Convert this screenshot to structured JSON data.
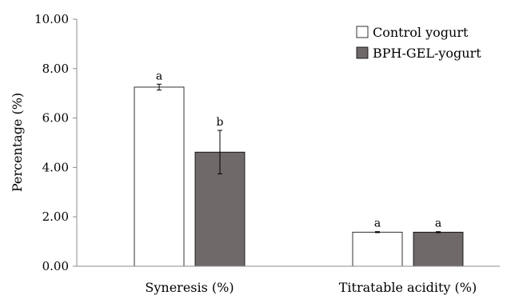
{
  "chart_data": {
    "type": "bar",
    "ylabel": "Percentage (%)",
    "xlabel": "",
    "ylim": [
      0,
      10
    ],
    "yticks": [
      "0.00",
      "2.00",
      "4.00",
      "6.00",
      "8.00",
      "10.00"
    ],
    "grid": false,
    "legend_position": "top-right",
    "categories": [
      "Syneresis (%)",
      "Titratable acidity (%)"
    ],
    "series": [
      {
        "name": "Control yogurt",
        "color": "#ffffff",
        "values": [
          7.25,
          1.38
        ],
        "errors": [
          0.12,
          0.02
        ],
        "labels": [
          "a",
          "a"
        ]
      },
      {
        "name": "BPH-GEL-yogurt",
        "color": "#6f6969",
        "values": [
          4.62,
          1.38
        ],
        "errors": [
          0.88,
          0.02
        ],
        "labels": [
          "b",
          "a"
        ]
      }
    ]
  }
}
